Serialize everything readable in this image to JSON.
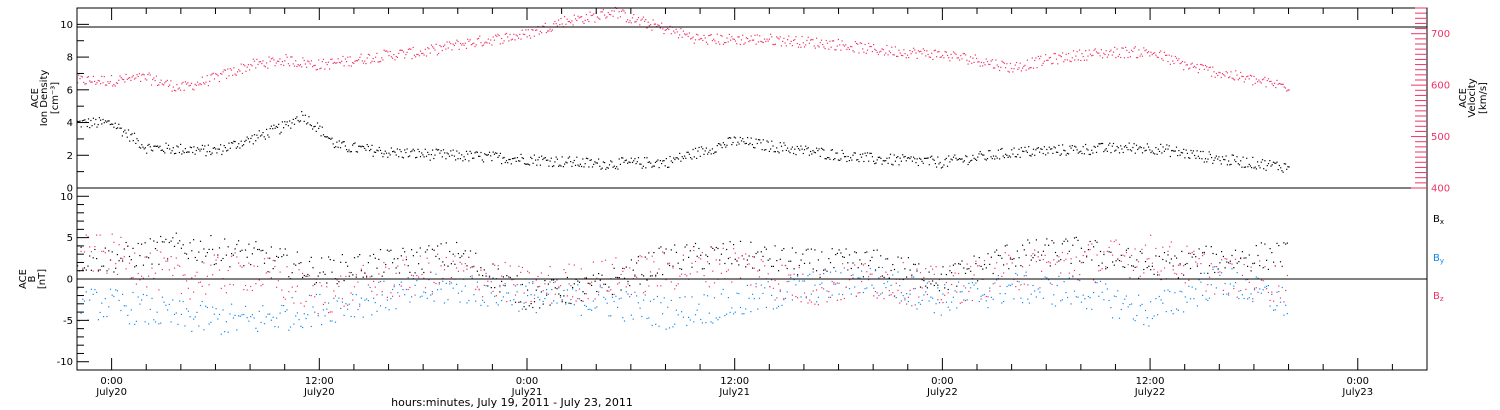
{
  "colors": {
    "density": "#000000",
    "velocity": "#ee3366",
    "bx": "#000000",
    "by": "#1188ee",
    "bz": "#ee3366",
    "axis": "#000000"
  },
  "chart_data": [
    {
      "type": "scatter",
      "panel": "top",
      "left_axis_label": [
        "ACE",
        "Ion Density",
        "[cm⁻³]"
      ],
      "right_axis_label": [
        "ACE",
        "Velocity",
        "[km/s]"
      ],
      "left_ylim": [
        0,
        11
      ],
      "left_ticks": [
        "0",
        "2",
        "4",
        "6",
        "8",
        "10"
      ],
      "right_ylim": [
        400,
        750
      ],
      "right_ticks": [
        "400",
        "500",
        "600",
        "700"
      ],
      "series": [
        {
          "axis": "left",
          "x_hours": [
            0,
            2,
            4,
            6,
            8,
            10,
            11,
            12,
            13,
            16,
            20,
            24,
            28,
            32,
            36,
            40,
            44,
            48,
            52,
            56,
            60,
            64,
            68
          ],
          "y": [
            4.0,
            2.5,
            2.4,
            2.3,
            3.0,
            3.8,
            4.5,
            3.6,
            2.6,
            2.2,
            2.0,
            1.8,
            1.5,
            1.6,
            2.9,
            2.3,
            1.8,
            1.6,
            2.2,
            2.4,
            2.5,
            1.8,
            1.3
          ]
        },
        {
          "axis": "right",
          "x_hours": [
            0,
            2,
            4,
            6,
            8,
            10,
            12,
            14,
            16,
            18,
            20,
            22,
            24,
            26,
            28,
            29,
            30,
            32,
            34,
            36,
            38,
            40,
            42,
            44,
            46,
            48,
            50,
            52,
            54,
            56,
            58,
            60,
            62,
            64,
            66,
            68
          ],
          "y": [
            610,
            615,
            595,
            615,
            640,
            650,
            640,
            650,
            660,
            665,
            680,
            690,
            700,
            725,
            735,
            745,
            730,
            710,
            690,
            690,
            690,
            685,
            680,
            670,
            665,
            660,
            650,
            635,
            650,
            660,
            665,
            665,
            640,
            625,
            610,
            598
          ]
        }
      ]
    },
    {
      "type": "scatter",
      "panel": "bottom",
      "axis_label": [
        "ACE",
        "B",
        "[nT]"
      ],
      "ylim": [
        -11,
        11
      ],
      "ticks": [
        "-10",
        "-5",
        "0",
        "5",
        "10"
      ],
      "legend": [
        "Bx",
        "By",
        "Bz"
      ],
      "series": [
        {
          "name": "Bx",
          "x_hours": [
            0,
            4,
            8,
            12,
            16,
            20,
            24,
            28,
            32,
            36,
            40,
            44,
            48,
            52,
            56,
            60,
            64,
            68
          ],
          "y": [
            2.5,
            4.0,
            3.0,
            1.0,
            2.0,
            3.0,
            -2.0,
            -1.0,
            2.5,
            3.0,
            2.0,
            2.0,
            0.0,
            3.0,
            3.5,
            1.5,
            2.5,
            3.0
          ]
        },
        {
          "name": "By",
          "x_hours": [
            0,
            4,
            8,
            12,
            16,
            20,
            24,
            28,
            32,
            36,
            40,
            44,
            48,
            52,
            56,
            60,
            64,
            68
          ],
          "y": [
            -3.0,
            -4.5,
            -5.0,
            -3.5,
            -2.0,
            -1.0,
            -2.0,
            -2.5,
            -4.0,
            -3.0,
            -1.0,
            0.0,
            -2.5,
            -1.0,
            -1.5,
            -4.0,
            0.0,
            -3.0
          ]
        },
        {
          "name": "Bz",
          "x_hours": [
            0,
            4,
            8,
            12,
            16,
            20,
            24,
            28,
            32,
            36,
            40,
            44,
            48,
            52,
            56,
            60,
            64,
            68
          ],
          "y": [
            3.0,
            0.0,
            1.0,
            -2.0,
            0.0,
            1.0,
            -1.0,
            0.0,
            1.0,
            2.0,
            -1.0,
            0.0,
            -1.0,
            1.0,
            2.0,
            3.0,
            0.5,
            -0.5
          ]
        }
      ]
    }
  ],
  "x_axis": {
    "range_hours": [
      -2,
      76
    ],
    "tick_hours": [
      0,
      12,
      24,
      36,
      48,
      60,
      72
    ],
    "tick_times": [
      "0:00",
      "12:00",
      "0:00",
      "12:00",
      "0:00",
      "12:00",
      "0:00"
    ],
    "tick_dates": [
      "July20",
      "July20",
      "July21",
      "July21",
      "July22",
      "July22",
      "July23"
    ],
    "title": "hours:minutes, July 19, 2011 - July 23, 2011"
  }
}
